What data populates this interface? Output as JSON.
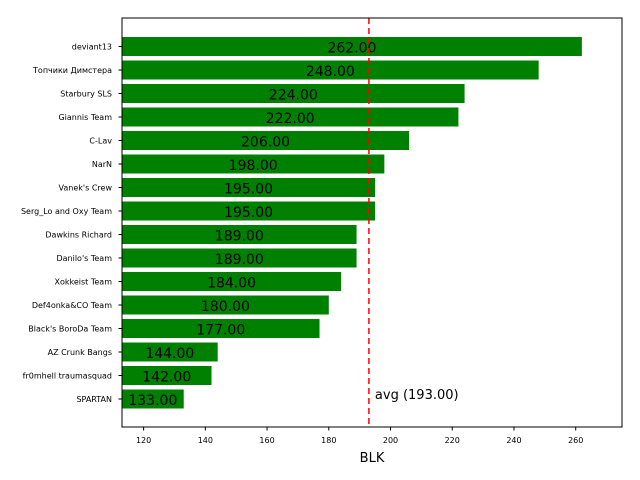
{
  "chart_data": {
    "type": "bar",
    "orientation": "horizontal",
    "title": "",
    "xlabel": "BLK",
    "ylabel": "",
    "xlim": [
      113,
      275
    ],
    "xticks": [
      120,
      140,
      160,
      180,
      200,
      220,
      240,
      260
    ],
    "grid": false,
    "bar_color": "#008000",
    "categories": [
      "deviant13",
      "Топчики Димстера",
      "Starbury SLS",
      "Giannis Team",
      "C-Lav",
      "NarN",
      "Vanek's Crew",
      "Serg_Lo and Oxy Team",
      "Dawkins Richard",
      "Danilo's Team",
      "Xokkeist Team",
      "Def4onka&CO Team",
      "Black's BoroDa Team",
      "AZ Crunk Bangs",
      "fr0mhell traumasquad",
      "SPARTAN"
    ],
    "values": [
      262,
      248,
      224,
      222,
      206,
      198,
      195,
      195,
      189,
      189,
      184,
      180,
      177,
      144,
      142,
      133
    ],
    "value_labels": [
      "262.00",
      "248.00",
      "224.00",
      "222.00",
      "206.00",
      "198.00",
      "195.00",
      "195.00",
      "189.00",
      "189.00",
      "184.00",
      "180.00",
      "177.00",
      "144.00",
      "142.00",
      "133.00"
    ],
    "average": {
      "value": 193,
      "label": "avg (193.00)",
      "color": "#ff0000",
      "style": "dashed"
    }
  }
}
